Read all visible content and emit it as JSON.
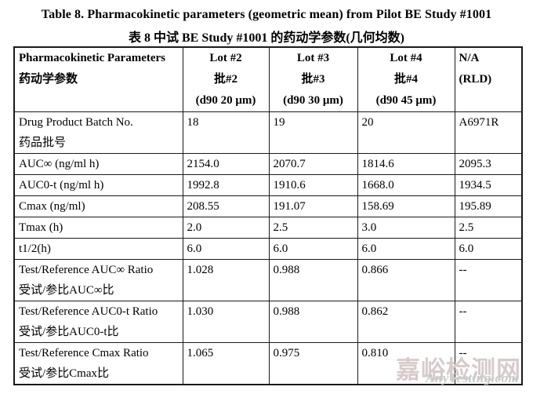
{
  "title": "Table 8. Pharmacokinetic parameters (geometric mean) from Pilot BE Study #1001",
  "subtitle": "表 8  中试 BE Study #1001 的药动学参数(几何均数)",
  "table": {
    "header": {
      "param_en": "Pharmacokinetic Parameters",
      "param_zh": "药动学参数",
      "cols": [
        {
          "line1": "Lot #2",
          "line2": "批#2",
          "line3": "(d90 20 μm)"
        },
        {
          "line1": "Lot #3",
          "line2": "批#3",
          "line3": "(d90 30 μm)"
        },
        {
          "line1": "Lot #4",
          "line2": "批#4",
          "line3": "(d90 45 μm)"
        },
        {
          "line1": "N/A",
          "line2": "(RLD)",
          "line3": ""
        }
      ]
    },
    "rows": [
      {
        "label_en": "Drug Product Batch No.",
        "label_zh": "药品批号",
        "values": [
          "18",
          "19",
          "20",
          "A6971R"
        ]
      },
      {
        "label_en": "AUC∞ (ng/ml h)",
        "label_zh": "",
        "values": [
          "2154.0",
          "2070.7",
          "1814.6",
          "2095.3"
        ]
      },
      {
        "label_en": "AUC0-t (ng/ml h)",
        "label_zh": "",
        "values": [
          "1992.8",
          "1910.6",
          "1668.0",
          "1934.5"
        ]
      },
      {
        "label_en": "Cmax (ng/ml)",
        "label_zh": "",
        "values": [
          "208.55",
          "191.07",
          "158.69",
          "195.89"
        ]
      },
      {
        "label_en": "Tmax (h)",
        "label_zh": "",
        "values": [
          "2.0",
          "2.5",
          "3.0",
          "2.5"
        ]
      },
      {
        "label_en": "t1/2(h)",
        "label_zh": "",
        "values": [
          "6.0",
          "6.0",
          "6.0",
          "6.0"
        ]
      },
      {
        "label_en": "Test/Reference AUC∞ Ratio",
        "label_zh": "受试/参比AUC∞比",
        "values": [
          "1.028",
          "0.988",
          "0.866",
          "--"
        ]
      },
      {
        "label_en": "Test/Reference AUC0-t Ratio",
        "label_zh": "受试/参比AUC0-t比",
        "values": [
          "1.030",
          "0.988",
          "0.862",
          "--"
        ]
      },
      {
        "label_en": "Test/Reference Cmax Ratio",
        "label_zh": "受试/参比Cmax比",
        "values": [
          "1.065",
          "0.975",
          "0.810",
          "--"
        ]
      }
    ]
  },
  "watermark": {
    "line1": "嘉峪检测网",
    "line2": "AnyTesting.com"
  },
  "colors": {
    "border": "#1a1a1a",
    "watermark_cn": "#d8cbcb",
    "watermark_en": "#c9c9c9"
  }
}
